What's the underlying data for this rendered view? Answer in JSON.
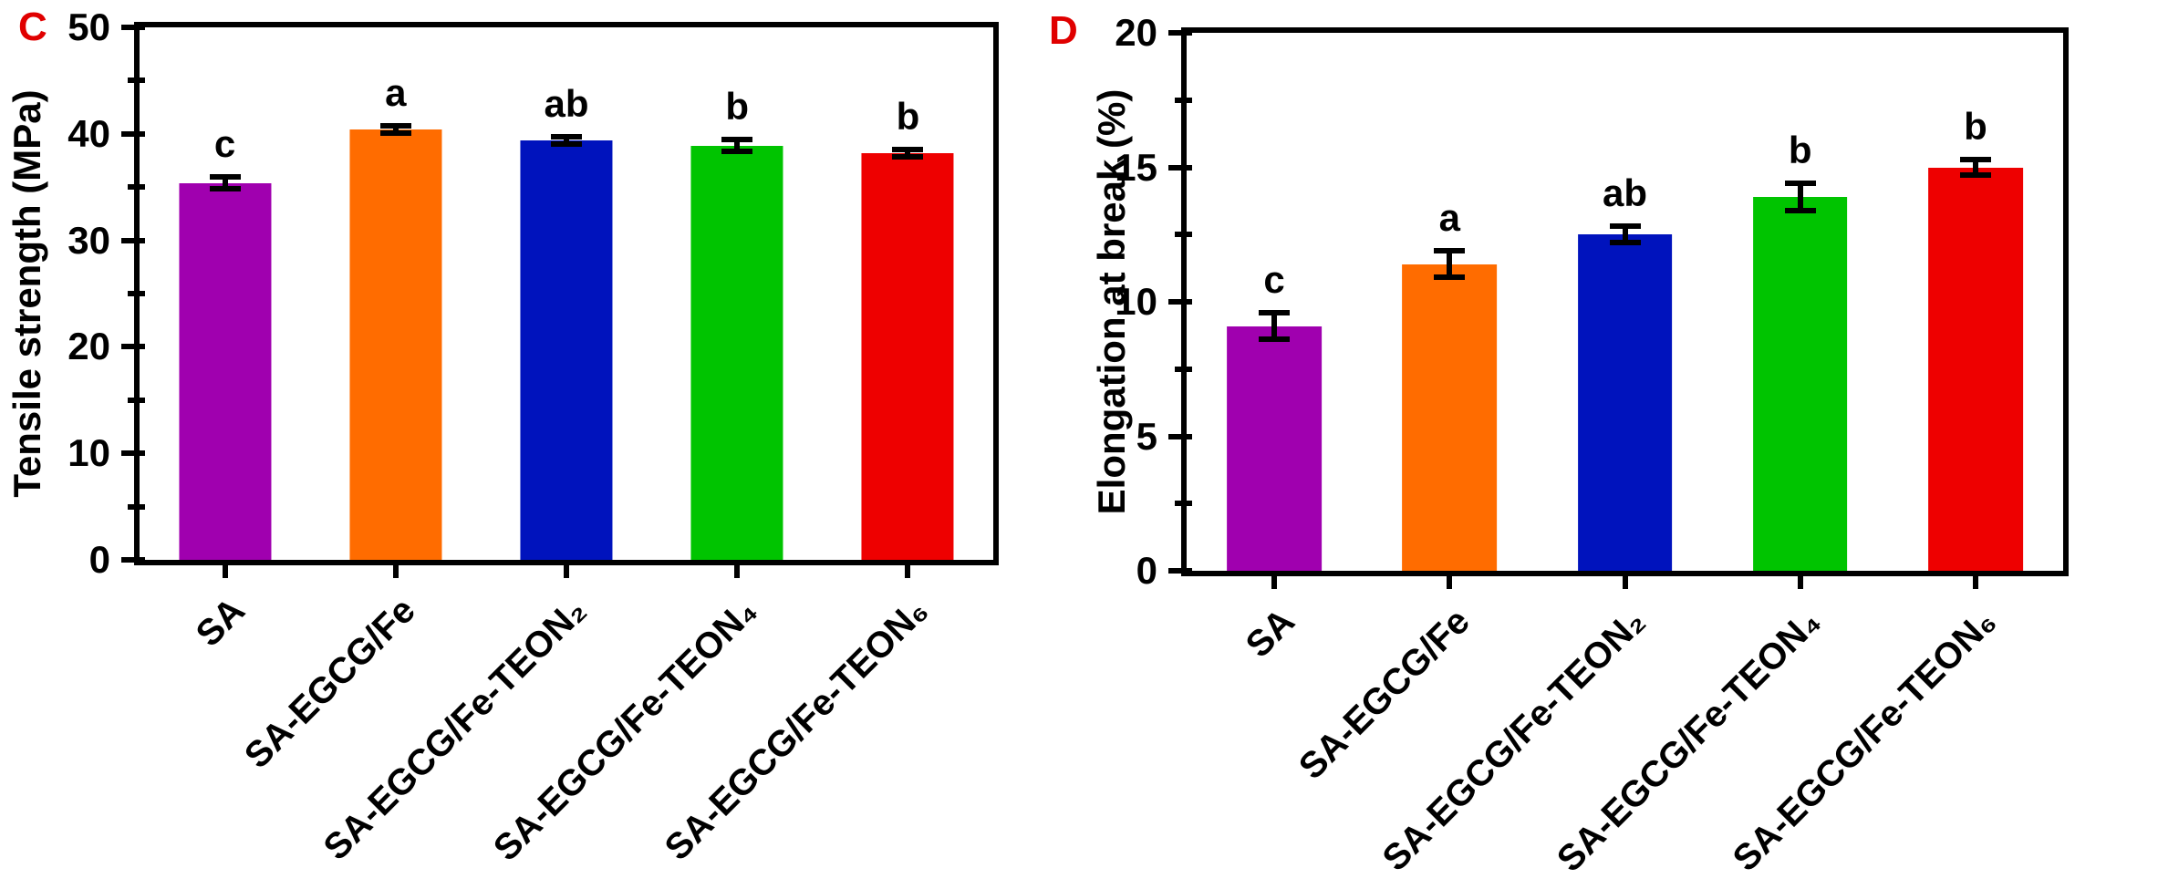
{
  "figure": {
    "background": "#FFFFFF",
    "axis_color": "#000000",
    "error_bar_color": "#000000",
    "panel_letter_color": "#E00000"
  },
  "chart_data": [
    {
      "type": "bar",
      "panel_label": "C",
      "title": "",
      "xlabel": "",
      "ylabel": "Tensile strength (MPa)",
      "categories": [
        "SA",
        "SA-EGCG/Fe",
        "SA-EGCG/Fe-TEON₂",
        "SA-EGCG/Fe-TEON₄",
        "SA-EGCG/Fe-TEON₆"
      ],
      "values": [
        35.4,
        40.4,
        39.4,
        38.9,
        38.2
      ],
      "errors": [
        0.8,
        0.6,
        0.6,
        0.8,
        0.6
      ],
      "sig_letters": [
        "c",
        "a",
        "ab",
        "b",
        "b"
      ],
      "bar_colors": [
        "#A000AF",
        "#FF6C00",
        "#0013BD",
        "#00C400",
        "#EE0000"
      ],
      "ylim": [
        0,
        50
      ],
      "yticks_major": [
        0,
        10,
        20,
        30,
        40,
        50
      ],
      "yticks_minor": [
        5,
        15,
        25,
        35,
        45
      ],
      "grid": false,
      "legend": "none"
    },
    {
      "type": "bar",
      "panel_label": "D",
      "title": "",
      "xlabel": "",
      "ylabel": "Elongation at break (%)",
      "categories": [
        "SA",
        "SA-EGCG/Fe",
        "SA-EGCG/Fe-TEON₂",
        "SA-EGCG/Fe-TEON₄",
        "SA-EGCG/Fe-TEON₆"
      ],
      "values": [
        9.1,
        11.4,
        12.5,
        13.9,
        15.0
      ],
      "errors": [
        0.6,
        0.6,
        0.4,
        0.6,
        0.4
      ],
      "sig_letters": [
        "c",
        "a",
        "ab",
        "b",
        "b"
      ],
      "bar_colors": [
        "#A000AF",
        "#FF6C00",
        "#0013BD",
        "#00C400",
        "#EE0000"
      ],
      "ylim": [
        0,
        20
      ],
      "yticks_major": [
        0,
        5,
        10,
        15,
        20
      ],
      "yticks_minor": [
        2.5,
        7.5,
        12.5,
        17.5
      ],
      "grid": false,
      "legend": "none"
    }
  ]
}
